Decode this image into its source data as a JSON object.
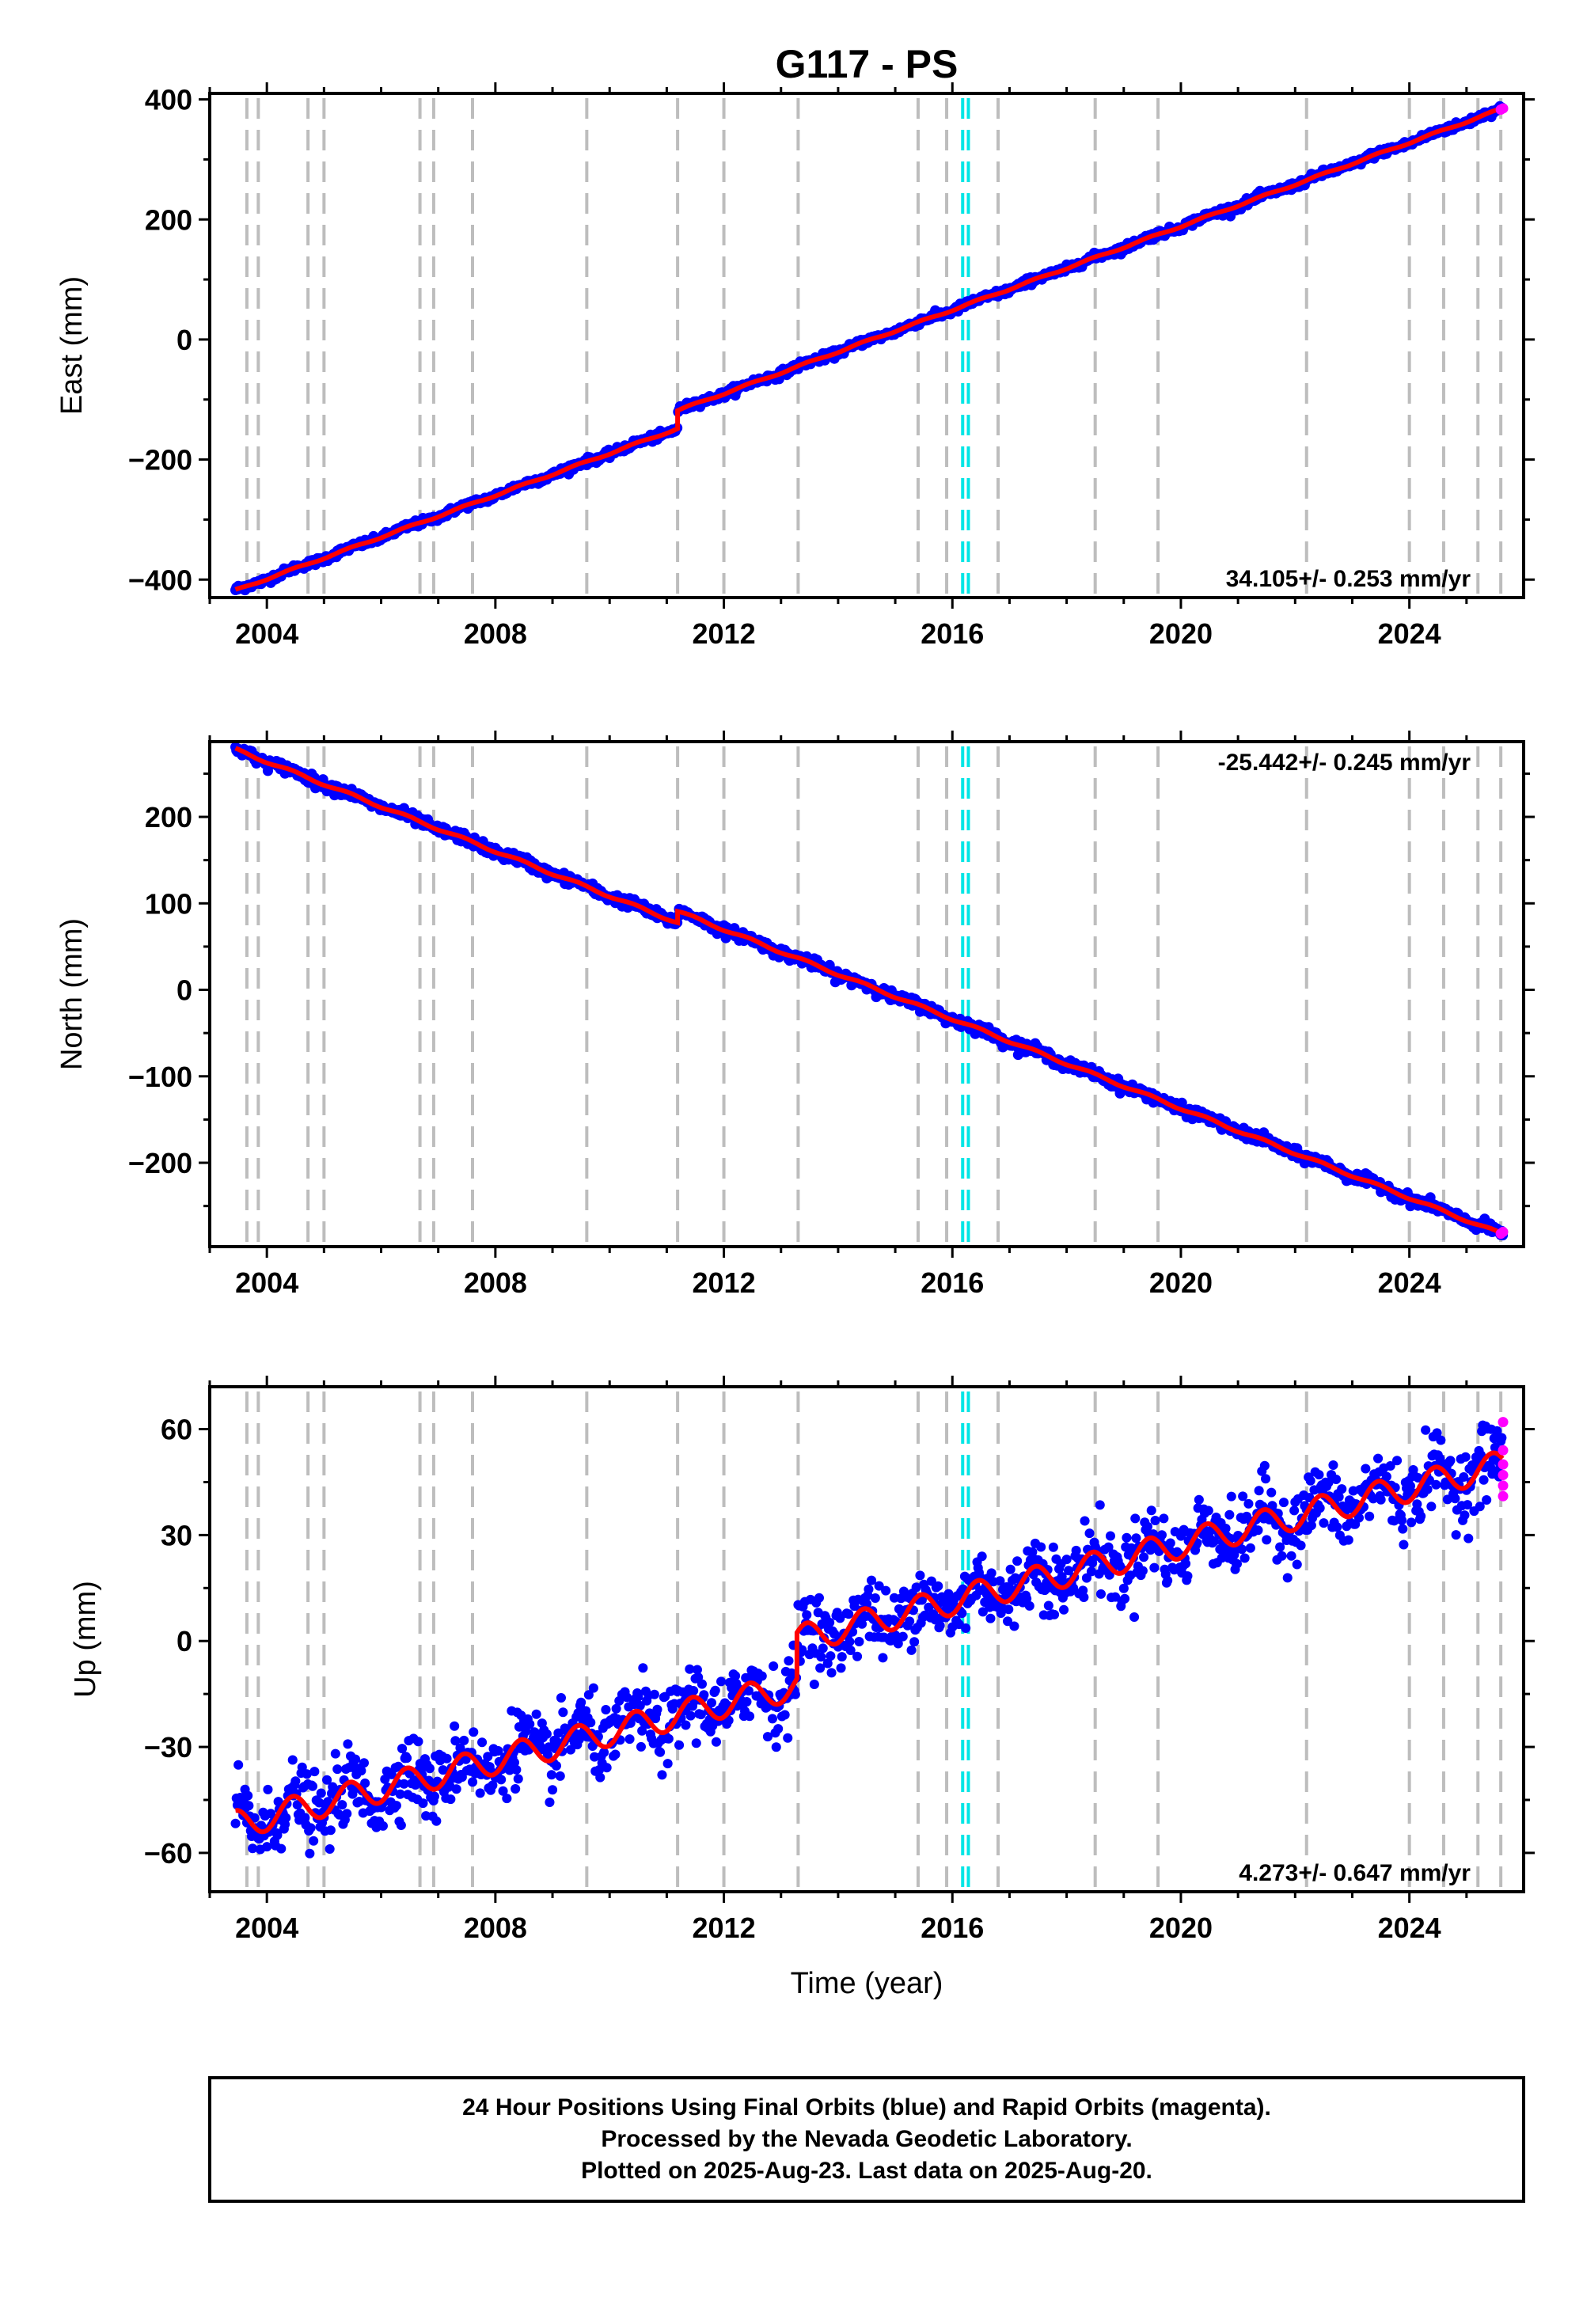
{
  "title": "G117 - PS",
  "xlabel": "Time (year)",
  "colors": {
    "final": "#0000ff",
    "rapid": "#ff00ff",
    "model": "#ff0000",
    "event": "#bdbdbd",
    "antenna": "#00e5e5"
  },
  "footer": {
    "line1": "24 Hour Positions Using Final Orbits (blue) and Rapid Orbits (magenta).",
    "line2": "Processed by the Nevada Geodetic Laboratory.",
    "line3": "Plotted on 2025-Aug-23. Last data on 2025-Aug-20."
  },
  "chart_data": [
    {
      "type": "scatter",
      "component": "East",
      "ylabel": "East (mm)",
      "rate_label": "34.105+/- 0.253 mm/yr",
      "xlim": [
        2003.0,
        2026.0
      ],
      "ylim": [
        -430,
        410
      ],
      "xticks": [
        2004,
        2008,
        2012,
        2016,
        2020,
        2024
      ],
      "xtick_labels": [
        "2004",
        "2008",
        "2012",
        "2016",
        "2020",
        "2024"
      ],
      "yticks": [
        -400,
        -200,
        0,
        200,
        400
      ],
      "ytick_labels": [
        "−400",
        "−200",
        "0",
        "200",
        "400"
      ],
      "model": {
        "x_start": 2003.45,
        "x_end": 2025.64,
        "y_start": -418,
        "y_end": 385,
        "offsets": [
          {
            "x": 2011.19,
            "y_before": -178,
            "y_after": -148
          }
        ],
        "seasonal_amp": 1.5,
        "noise": 3
      },
      "rapid_points": [
        {
          "x": 2025.6,
          "y": 383
        },
        {
          "x": 2025.64,
          "y": 385
        }
      ],
      "event_lines": [
        2003.65,
        2003.85,
        2004.72,
        2005.0,
        2006.68,
        2006.92,
        2007.6,
        2009.6,
        2011.19,
        2012.0,
        2013.3,
        2015.4,
        2015.9,
        2016.8,
        2018.5,
        2019.6,
        2022.2,
        2024.0,
        2024.6,
        2025.2,
        2025.6
      ],
      "antenna_lines": [
        2016.18,
        2016.28
      ]
    },
    {
      "type": "scatter",
      "component": "North",
      "ylabel": "North (mm)",
      "rate_label": "-25.442+/- 0.245 mm/yr",
      "xlim": [
        2003.0,
        2026.0
      ],
      "ylim": [
        -297,
        287
      ],
      "xticks": [
        2004,
        2008,
        2012,
        2016,
        2020,
        2024
      ],
      "xtick_labels": [
        "2004",
        "2008",
        "2012",
        "2016",
        "2020",
        "2024"
      ],
      "yticks": [
        -200,
        -100,
        0,
        100,
        200
      ],
      "ytick_labels": [
        "−200",
        "−100",
        "0",
        "100",
        "200"
      ],
      "model": {
        "x_start": 2003.45,
        "x_end": 2025.64,
        "y_start": 278,
        "y_end": -283,
        "offsets": [
          {
            "x": 2011.19,
            "y_before": 50,
            "y_after": 63
          }
        ],
        "seasonal_amp": 1.5,
        "noise": 3
      },
      "rapid_points": [
        {
          "x": 2025.6,
          "y": -282
        },
        {
          "x": 2025.64,
          "y": -280
        }
      ],
      "event_lines": [
        2003.65,
        2003.85,
        2004.72,
        2005.0,
        2006.68,
        2006.92,
        2007.6,
        2009.6,
        2011.19,
        2012.0,
        2013.3,
        2015.4,
        2015.9,
        2016.8,
        2018.5,
        2019.6,
        2022.2,
        2024.0,
        2024.6,
        2025.2,
        2025.6
      ],
      "antenna_lines": [
        2016.18,
        2016.28
      ]
    },
    {
      "type": "scatter",
      "component": "Up",
      "ylabel": "Up (mm)",
      "rate_label": "4.273+/- 0.647 mm/yr",
      "xlim": [
        2003.0,
        2026.0
      ],
      "ylim": [
        -71,
        72
      ],
      "xticks": [
        2004,
        2008,
        2012,
        2016,
        2020,
        2024
      ],
      "xtick_labels": [
        "2004",
        "2008",
        "2012",
        "2016",
        "2020",
        "2024"
      ],
      "yticks": [
        -60,
        -30,
        0,
        30,
        60
      ],
      "ytick_labels": [
        "−60",
        "−30",
        "0",
        "30",
        "60"
      ],
      "model": {
        "x_start": 2003.45,
        "x_end": 2025.64,
        "y_start": -52,
        "y_end": 50,
        "offsets": [
          {
            "x": 2013.28,
            "y_before": -15,
            "y_after": -2
          }
        ],
        "seasonal_amp": 4,
        "noise": 5
      },
      "rapid_points": [
        {
          "x": 2025.64,
          "y": 62
        },
        {
          "x": 2025.64,
          "y": 54
        },
        {
          "x": 2025.64,
          "y": 50
        },
        {
          "x": 2025.64,
          "y": 47
        },
        {
          "x": 2025.64,
          "y": 44
        },
        {
          "x": 2025.64,
          "y": 41
        }
      ],
      "event_lines": [
        2003.65,
        2003.85,
        2004.72,
        2005.0,
        2006.68,
        2006.92,
        2007.6,
        2009.6,
        2011.19,
        2012.0,
        2013.3,
        2015.4,
        2015.9,
        2016.8,
        2018.5,
        2019.6,
        2022.2,
        2024.0,
        2024.6,
        2025.2,
        2025.6
      ],
      "antenna_lines": [
        2016.18,
        2016.28
      ]
    }
  ]
}
